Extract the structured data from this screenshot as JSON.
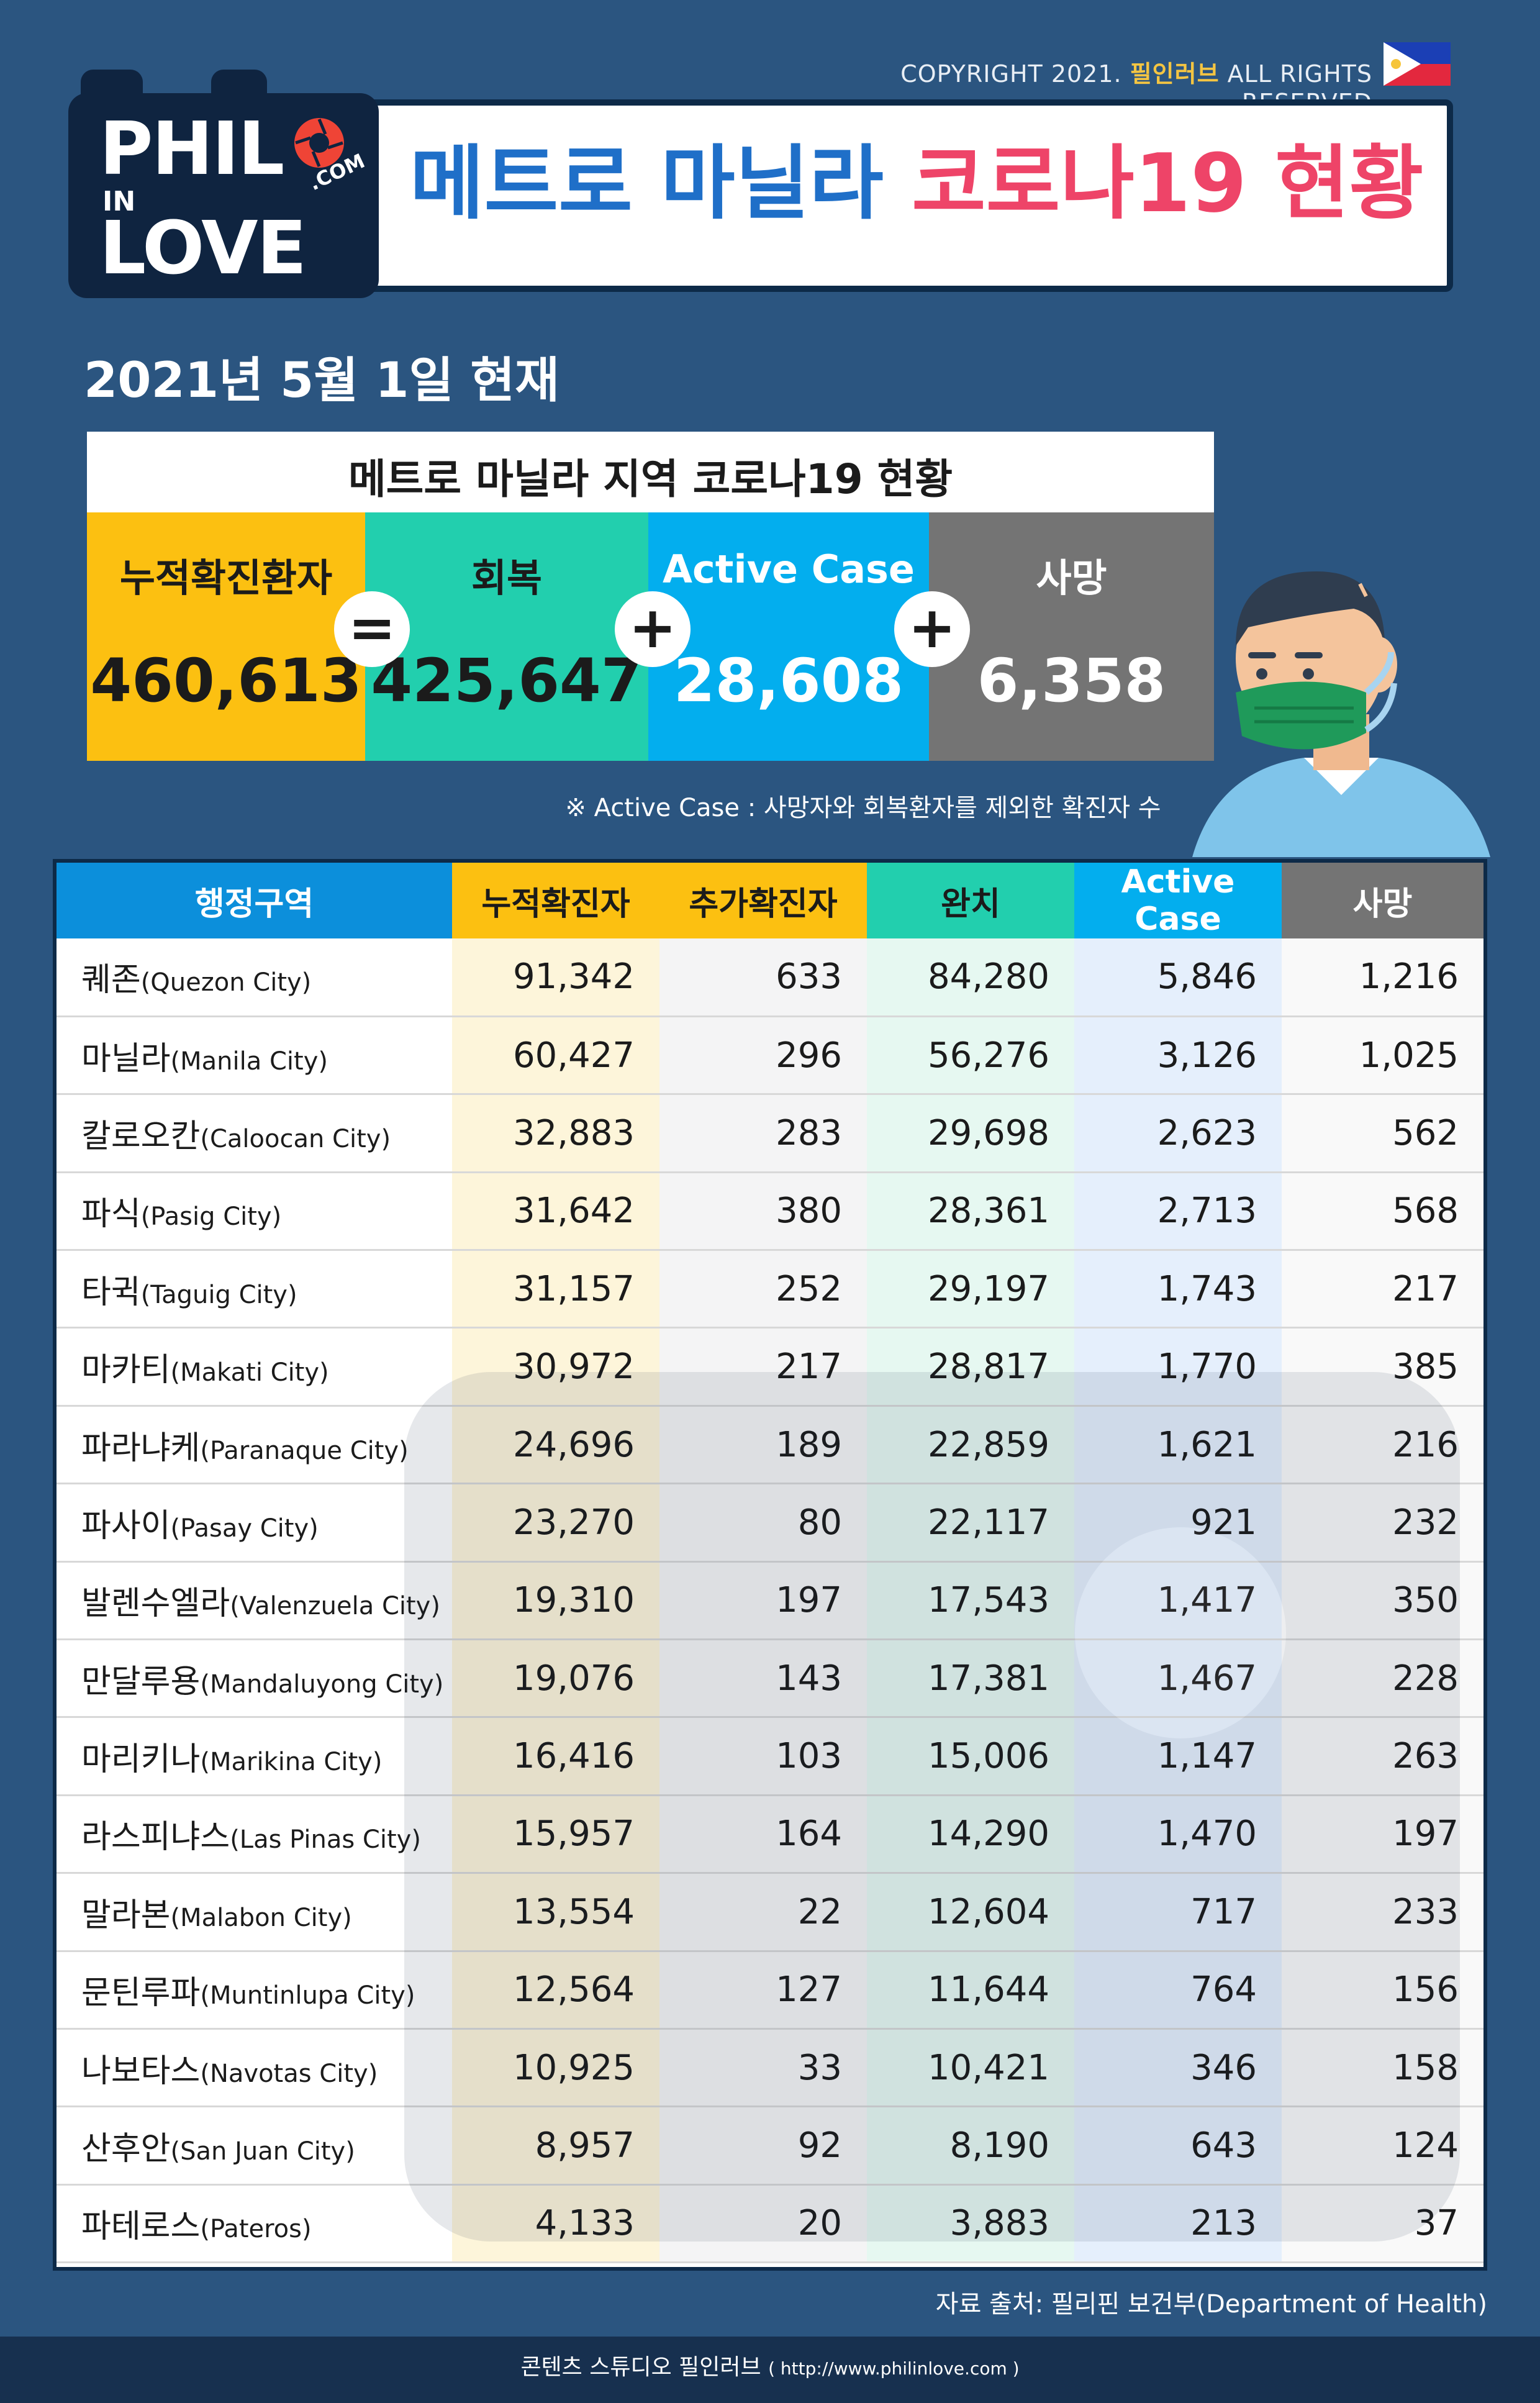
{
  "copyright": {
    "prefix": "COPYRIGHT 2021. ",
    "brand": "필인러브",
    "suffix": " ALL RIGHTS RESERVED"
  },
  "logo": {
    "line1": "PHIL",
    "line2": "IN",
    "line3": "LOVE",
    "com": ".COM"
  },
  "title": {
    "part1": "메트로 마닐라 ",
    "part2": "코로나19 현황"
  },
  "date": "2021년 5월 1일 현재",
  "summary": {
    "title": "메트로 마닐라 지역 코로나19 현황",
    "items": [
      {
        "label": "누적확진환자",
        "value": "460,613",
        "color": "#fcc011",
        "text": "#1b1b1b"
      },
      {
        "label": "회복",
        "value": "425,647",
        "color": "#22cfae",
        "text": "#1b1b1b"
      },
      {
        "label": "Active Case",
        "value": "28,608",
        "color": "#03aeee",
        "text": "#ffffff"
      },
      {
        "label": "사망",
        "value": "6,358",
        "color": "#747474",
        "text": "#ffffff"
      }
    ],
    "operators": [
      "=",
      "+",
      "+"
    ]
  },
  "note": "※ Active Case : 사망자와 회복환자를 제외한 확진자 수",
  "table": {
    "headers": [
      {
        "label": "행정구역",
        "bg": "#0c8fdb",
        "color": "#ffffff"
      },
      {
        "label": "누적확진자",
        "bg": "#fcc011",
        "color": "#1b1b1b"
      },
      {
        "label": "추가확진자",
        "bg": "#fcc011",
        "color": "#1b1b1b"
      },
      {
        "label": "완치",
        "bg": "#22cfae",
        "color": "#1b1b1b"
      },
      {
        "label": "Active Case",
        "bg": "#03aeee",
        "color": "#ffffff"
      },
      {
        "label": "사망",
        "bg": "#747474",
        "color": "#ffffff"
      }
    ],
    "rows": [
      {
        "kr": "퀘존",
        "en": "(Quezon City)",
        "total": "91,342",
        "new": "633",
        "recovered": "84,280",
        "active": "5,846",
        "deaths": "1,216"
      },
      {
        "kr": "마닐라",
        "en": "(Manila City)",
        "total": "60,427",
        "new": "296",
        "recovered": "56,276",
        "active": "3,126",
        "deaths": "1,025"
      },
      {
        "kr": "칼로오칸",
        "en": "(Caloocan City)",
        "total": "32,883",
        "new": "283",
        "recovered": "29,698",
        "active": "2,623",
        "deaths": "562"
      },
      {
        "kr": "파식",
        "en": "(Pasig City)",
        "total": "31,642",
        "new": "380",
        "recovered": "28,361",
        "active": "2,713",
        "deaths": "568"
      },
      {
        "kr": "타귁",
        "en": "(Taguig City)",
        "total": "31,157",
        "new": "252",
        "recovered": "29,197",
        "active": "1,743",
        "deaths": "217"
      },
      {
        "kr": "마카티",
        "en": "(Makati City)",
        "total": "30,972",
        "new": "217",
        "recovered": "28,817",
        "active": "1,770",
        "deaths": "385"
      },
      {
        "kr": "파라냐케",
        "en": "(Paranaque City)",
        "total": "24,696",
        "new": "189",
        "recovered": "22,859",
        "active": "1,621",
        "deaths": "216"
      },
      {
        "kr": "파사이",
        "en": "(Pasay City)",
        "total": "23,270",
        "new": "80",
        "recovered": "22,117",
        "active": "921",
        "deaths": "232"
      },
      {
        "kr": "발렌수엘라",
        "en": "(Valenzuela City)",
        "total": "19,310",
        "new": "197",
        "recovered": "17,543",
        "active": "1,417",
        "deaths": "350"
      },
      {
        "kr": "만달루용",
        "en": "(Mandaluyong City)",
        "total": "19,076",
        "new": "143",
        "recovered": "17,381",
        "active": "1,467",
        "deaths": "228"
      },
      {
        "kr": "마리키나",
        "en": "(Marikina City)",
        "total": "16,416",
        "new": "103",
        "recovered": "15,006",
        "active": "1,147",
        "deaths": "263"
      },
      {
        "kr": "라스피냐스",
        "en": "(Las Pinas City)",
        "total": "15,957",
        "new": "164",
        "recovered": "14,290",
        "active": "1,470",
        "deaths": "197"
      },
      {
        "kr": "말라본",
        "en": "(Malabon City)",
        "total": "13,554",
        "new": "22",
        "recovered": "12,604",
        "active": "717",
        "deaths": "233"
      },
      {
        "kr": "문틴루파",
        "en": "(Muntinlupa City)",
        "total": "12,564",
        "new": "127",
        "recovered": "11,644",
        "active": "764",
        "deaths": "156"
      },
      {
        "kr": "나보타스",
        "en": "(Navotas City)",
        "total": "10,925",
        "new": "33",
        "recovered": "10,421",
        "active": "346",
        "deaths": "158"
      },
      {
        "kr": "산후안",
        "en": "(San Juan City)",
        "total": "8,957",
        "new": "92",
        "recovered": "8,190",
        "active": "643",
        "deaths": "124"
      },
      {
        "kr": "파테로스",
        "en": "(Pateros)",
        "total": "4,133",
        "new": "20",
        "recovered": "3,883",
        "active": "213",
        "deaths": "37"
      }
    ]
  },
  "source": "자료 출처: 필리핀 보건부(Department of Health)",
  "footer": {
    "text": "콘텐츠 스튜디오 필인러브 ",
    "url": "( http://www.philinlove.com )"
  },
  "icons": {
    "flag": "philippines-flag-icon",
    "person": "masked-person-illustration",
    "lens": "camera-lens-icon"
  }
}
